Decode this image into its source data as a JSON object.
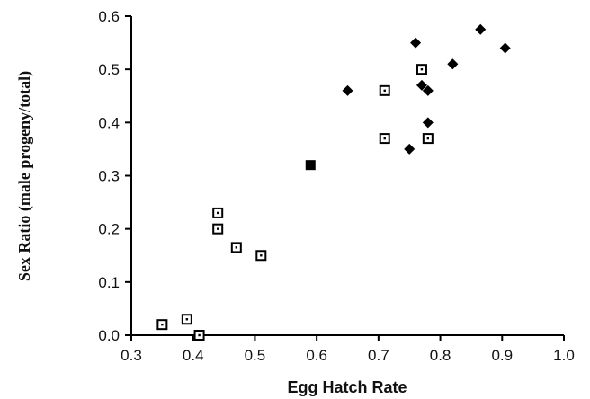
{
  "chart_data": {
    "type": "scatter",
    "title": "",
    "xlabel": "Egg Hatch Rate",
    "ylabel": "Sex Ratio (male progeny/total)",
    "xlim": [
      0.3,
      1.0
    ],
    "ylim": [
      0.0,
      0.6
    ],
    "xticks": [
      "0.3",
      "0.4",
      "0.5",
      "0.6",
      "0.7",
      "0.8",
      "0.9",
      "1.0"
    ],
    "yticks": [
      "0.0",
      "0.1",
      "0.2",
      "0.3",
      "0.4",
      "0.5",
      "0.6"
    ],
    "grid": false,
    "legend": "none",
    "series": [
      {
        "marker": "diamond-filled",
        "color": "#000000",
        "points": [
          {
            "x": 0.65,
            "y": 0.46
          },
          {
            "x": 0.75,
            "y": 0.35
          },
          {
            "x": 0.76,
            "y": 0.55
          },
          {
            "x": 0.77,
            "y": 0.47
          },
          {
            "x": 0.78,
            "y": 0.46
          },
          {
            "x": 0.78,
            "y": 0.4
          },
          {
            "x": 0.82,
            "y": 0.51
          },
          {
            "x": 0.865,
            "y": 0.575
          },
          {
            "x": 0.905,
            "y": 0.54
          }
        ]
      },
      {
        "marker": "square-open-dot",
        "color": "#000000",
        "points": [
          {
            "x": 0.35,
            "y": 0.02
          },
          {
            "x": 0.39,
            "y": 0.03
          },
          {
            "x": 0.41,
            "y": 0.0
          },
          {
            "x": 0.44,
            "y": 0.23
          },
          {
            "x": 0.44,
            "y": 0.2
          },
          {
            "x": 0.47,
            "y": 0.165
          },
          {
            "x": 0.51,
            "y": 0.15
          },
          {
            "x": 0.71,
            "y": 0.46
          },
          {
            "x": 0.71,
            "y": 0.37
          },
          {
            "x": 0.77,
            "y": 0.5
          },
          {
            "x": 0.78,
            "y": 0.37
          }
        ]
      },
      {
        "marker": "square-filled",
        "color": "#000000",
        "points": [
          {
            "x": 0.59,
            "y": 0.32
          }
        ]
      }
    ]
  }
}
